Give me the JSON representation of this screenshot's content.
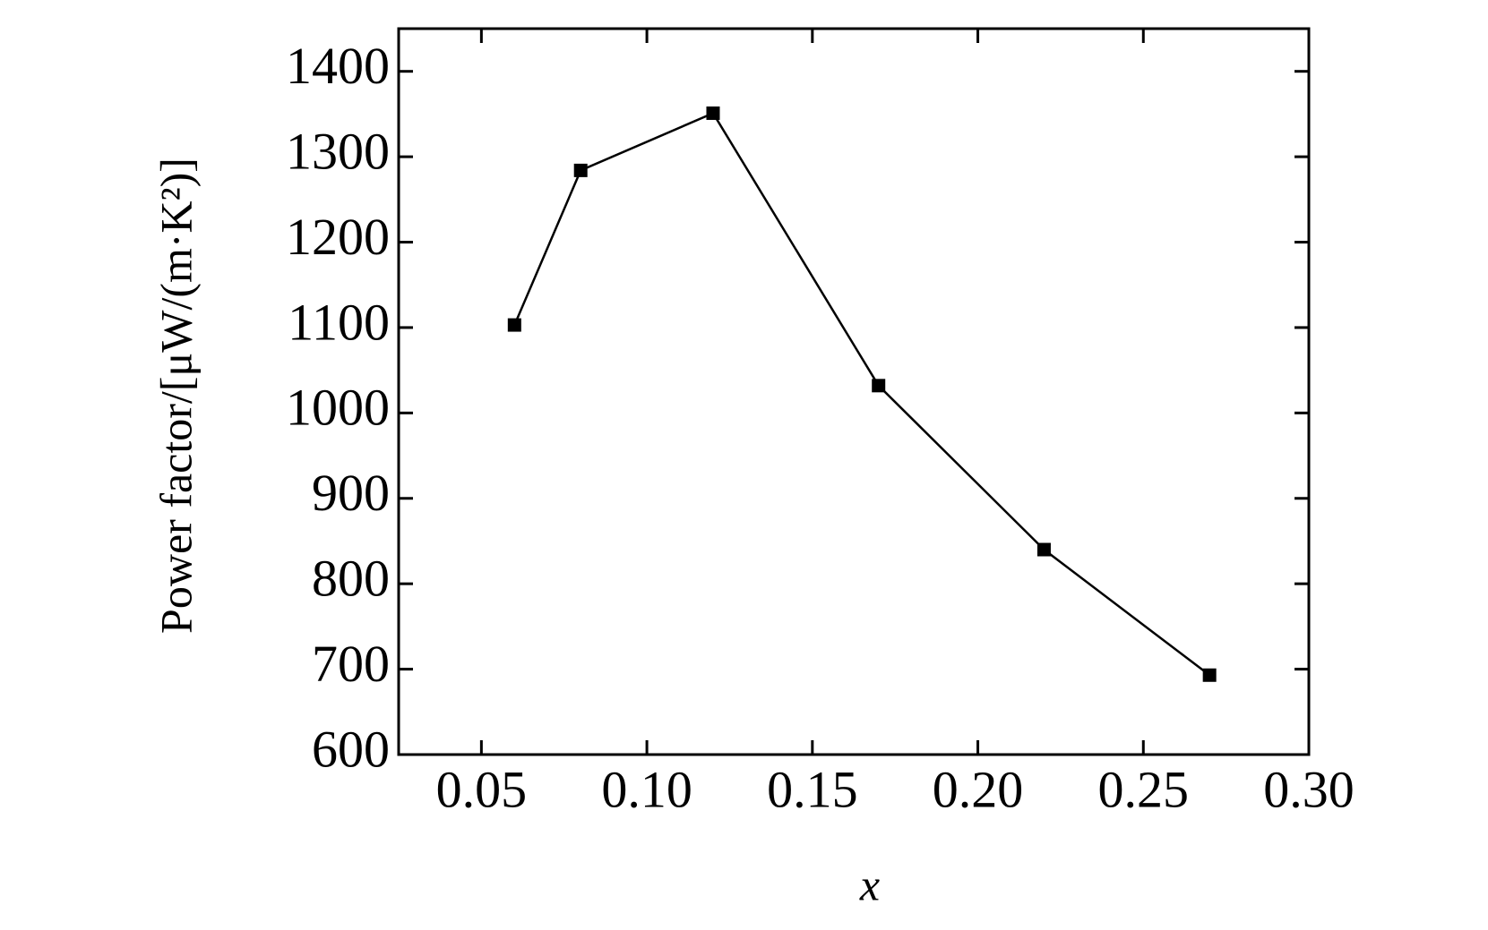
{
  "chart_data": {
    "type": "line",
    "x_label": "x",
    "y_label": "Power factor/[μW/(m·K²)]",
    "x": [
      0.06,
      0.08,
      0.12,
      0.17,
      0.22,
      0.27
    ],
    "series": [
      {
        "color": "#000000",
        "values": [
          1103,
          1284,
          1351,
          1032,
          840,
          693
        ]
      }
    ],
    "xlim": [
      0.025,
      0.3
    ],
    "ylim": [
      600,
      1450
    ],
    "xticks": [
      {
        "value": 0.05,
        "label": "0.05"
      },
      {
        "value": 0.1,
        "label": "0.10"
      },
      {
        "value": 0.15,
        "label": "0.15"
      },
      {
        "value": 0.2,
        "label": "0.20"
      },
      {
        "value": 0.25,
        "label": "0.25"
      },
      {
        "value": 0.3,
        "label": "0.30"
      }
    ],
    "yticks": [
      600,
      700,
      800,
      900,
      1000,
      1100,
      1200,
      1300,
      1400
    ],
    "marker": "square",
    "grid": false
  }
}
